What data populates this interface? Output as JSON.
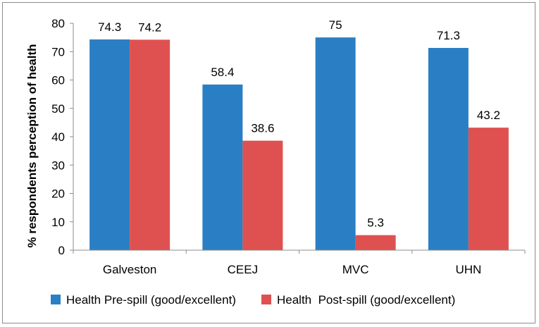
{
  "chart_data": {
    "type": "bar",
    "categories": [
      "Galveston",
      "CEEJ",
      "MVC",
      "UHN"
    ],
    "series": [
      {
        "name": "Health Pre-spill (good/excellent)",
        "values": [
          74.3,
          58.4,
          75,
          71.3
        ],
        "color": "#2a7fc4"
      },
      {
        "name": "Health  Post-spill (good/excellent)",
        "values": [
          74.2,
          38.6,
          5.3,
          43.2
        ],
        "color": "#de5150"
      }
    ],
    "data_labels": [
      [
        "74.3",
        "58.4",
        "75",
        "71.3"
      ],
      [
        "74.2",
        "38.6",
        "5.3",
        "43.2"
      ]
    ],
    "ylabel": "% respondents perception of health",
    "xlabel": "",
    "ylim": [
      0,
      80
    ],
    "yticks": [
      0,
      10,
      20,
      30,
      40,
      50,
      60,
      70,
      80
    ],
    "legend_position": "bottom",
    "grid": false
  }
}
